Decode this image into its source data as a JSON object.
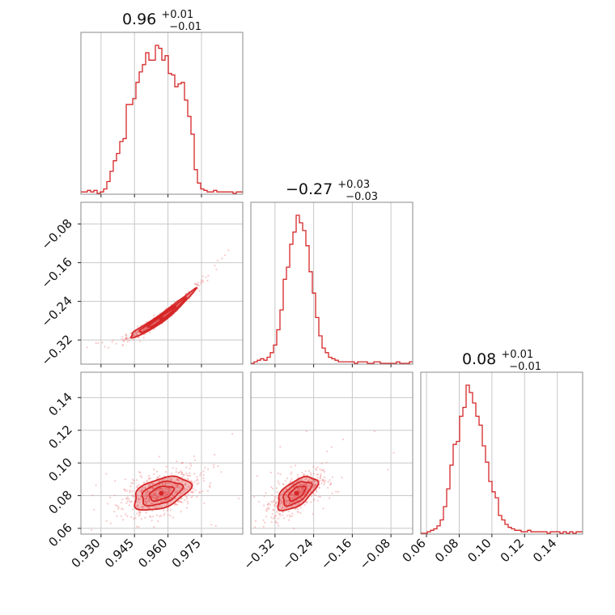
{
  "chart_data": {
    "type": "corner",
    "color": "#d62728",
    "parameters": [
      {
        "id": "p0",
        "range": [
          0.921,
          0.9935
        ],
        "ticks": [
          "0.930",
          "0.945",
          "0.960",
          "0.975"
        ],
        "tick_values": [
          0.93,
          0.945,
          0.96,
          0.975
        ]
      },
      {
        "id": "p1",
        "range": [
          -0.37,
          -0.035
        ],
        "ticks": [
          "−0.32",
          "−0.24",
          "−0.16",
          "−0.08"
        ],
        "tick_values": [
          -0.32,
          -0.24,
          -0.16,
          -0.08
        ]
      },
      {
        "id": "p2",
        "range": [
          0.0565,
          0.1555
        ],
        "ticks": [
          "0.06",
          "0.08",
          "0.10",
          "0.12",
          "0.14"
        ],
        "tick_values": [
          0.06,
          0.08,
          0.1,
          0.12,
          0.14
        ]
      }
    ],
    "titles": [
      {
        "value": "0.96",
        "plus": "+0.01",
        "minus": "−0.01"
      },
      {
        "value": "−0.27",
        "plus": "+0.03",
        "minus": "−0.03"
      },
      {
        "value": "0.08",
        "plus": "+0.01",
        "minus": "−0.01"
      }
    ],
    "marginals": [
      {
        "param": 0,
        "bin_start": 0.921,
        "bin_width": 0.00145,
        "counts": [
          1,
          1,
          2,
          1,
          2,
          0,
          1,
          3,
          8,
          15,
          22,
          27,
          35,
          37,
          60,
          60,
          64,
          75,
          82,
          87,
          95,
          90,
          90,
          100,
          98,
          90,
          93,
          81,
          80,
          72,
          74,
          75,
          63,
          52,
          40,
          16,
          7,
          3,
          2,
          1,
          1,
          2,
          1,
          1,
          1,
          1,
          1,
          0,
          1,
          1
        ]
      },
      {
        "param": 1,
        "bin_start": -0.37,
        "bin_width": 0.0067,
        "counts": [
          0,
          1,
          2,
          3,
          2,
          4,
          7,
          12,
          22,
          35,
          55,
          63,
          78,
          86,
          97,
          92,
          87,
          77,
          60,
          46,
          30,
          18,
          10,
          7,
          4,
          3,
          2,
          1,
          1,
          1,
          1,
          1,
          0,
          1,
          1,
          1,
          0,
          0,
          1,
          1,
          0,
          0,
          0,
          0,
          0,
          1,
          0,
          0,
          0,
          1
        ]
      },
      {
        "param": 2,
        "bin_start": 0.0565,
        "bin_width": 0.00198,
        "counts": [
          0,
          0,
          1,
          2,
          3,
          5,
          9,
          18,
          30,
          46,
          60,
          62,
          79,
          85,
          100,
          95,
          88,
          79,
          73,
          59,
          48,
          35,
          28,
          24,
          12,
          9,
          6,
          4,
          3,
          2,
          2,
          1,
          1,
          2,
          1,
          1,
          1,
          1,
          1,
          0,
          1,
          1,
          1,
          0,
          1,
          0,
          1,
          0,
          1,
          1
        ]
      }
    ],
    "joint": [
      {
        "x": 0,
        "y": 1,
        "x_mean": 0.957,
        "y_mean": -0.275,
        "x_sd": 0.0076,
        "relation": "y = -0.275 + 3.3*(x-0.957) + 45*(x-0.957)^2",
        "y_noise_sd": 0.005
      },
      {
        "x": 0,
        "y": 2,
        "x_mean": 0.957,
        "y_mean": 0.0815,
        "x_sd": 0.008,
        "y_sd": 0.0065,
        "correlation": 0.45
      },
      {
        "x": 1,
        "y": 2,
        "x_mean": -0.275,
        "y_mean": 0.0815,
        "x_sd": 0.026,
        "y_sd": 0.0065,
        "correlation": 0.6
      }
    ],
    "grid": true
  }
}
